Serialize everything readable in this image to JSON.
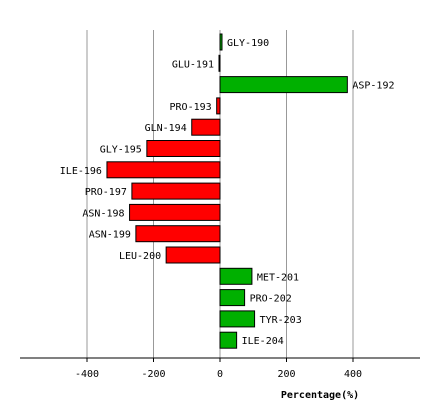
{
  "chart_data": {
    "type": "bar",
    "orientation": "horizontal",
    "xlabel": "Percentage(%)",
    "xlim": [
      -600,
      600
    ],
    "xticks": [
      -400,
      -200,
      0,
      200,
      400
    ],
    "grid": true,
    "colors": {
      "positive": "#00b000",
      "negative": "#ff0000"
    },
    "categories": [
      "GLY-190",
      "GLU-191",
      "ASP-192",
      "PRO-193",
      "GLN-194",
      "GLY-195",
      "ILE-196",
      "PRO-197",
      "ASN-198",
      "ASN-199",
      "LEU-200",
      "MET-201",
      "PRO-202",
      "TYR-203",
      "ILE-204"
    ],
    "values": [
      6,
      -3,
      383,
      -10,
      -85,
      -220,
      -340,
      -265,
      -272,
      -253,
      -162,
      96,
      74,
      104,
      50
    ]
  }
}
